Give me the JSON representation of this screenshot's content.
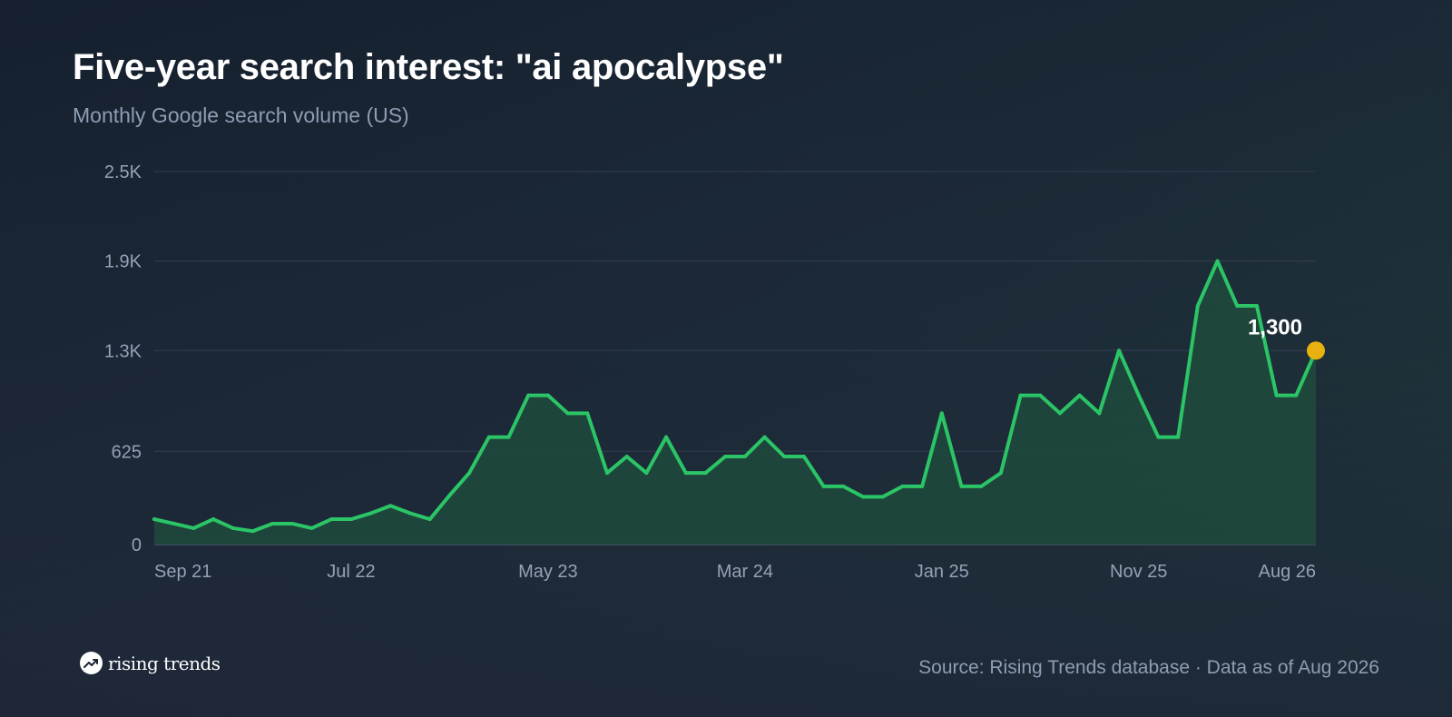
{
  "title": "Five-year search interest: \"ai apocalypse\"",
  "subtitle": "Monthly Google search volume (US)",
  "source": "Source: Rising Trends database · Data as of Aug 2026",
  "logo": {
    "text": "rising trends",
    "icon": "trend-arrow-icon"
  },
  "colors": {
    "line": "#2bc466",
    "area": "#1f4a3c",
    "marker": "#e8b10f",
    "grid": "#2e3a4c",
    "axis_text": "#95a1b5"
  },
  "chart_data": {
    "type": "area",
    "x_start": "Sep 21",
    "x_end": "Aug 26",
    "x_tick_labels": [
      "Sep 21",
      "Jul 22",
      "May 23",
      "Mar 24",
      "Jan 25",
      "Nov 25",
      "Aug 26"
    ],
    "x_tick_indices": [
      0,
      10,
      20,
      30,
      40,
      50,
      59
    ],
    "y_ticks": [
      0,
      625,
      1300,
      1900,
      2500
    ],
    "y_tick_labels": [
      "0",
      "625",
      "1.3K",
      "1.9K",
      "2.5K"
    ],
    "ylim": [
      0,
      2500
    ],
    "grid": true,
    "values": [
      170,
      140,
      110,
      170,
      110,
      90,
      140,
      140,
      110,
      170,
      170,
      210,
      260,
      210,
      170,
      330,
      480,
      720,
      720,
      1000,
      1000,
      880,
      880,
      480,
      590,
      480,
      720,
      480,
      480,
      590,
      590,
      720,
      590,
      590,
      390,
      390,
      320,
      320,
      390,
      390,
      880,
      390,
      390,
      480,
      1000,
      1000,
      880,
      1000,
      880,
      1300,
      1000,
      720,
      720,
      1600,
      1900,
      1600,
      1600,
      1000,
      1000,
      1300
    ],
    "annotation": {
      "index": 59,
      "label": "1,300"
    }
  }
}
